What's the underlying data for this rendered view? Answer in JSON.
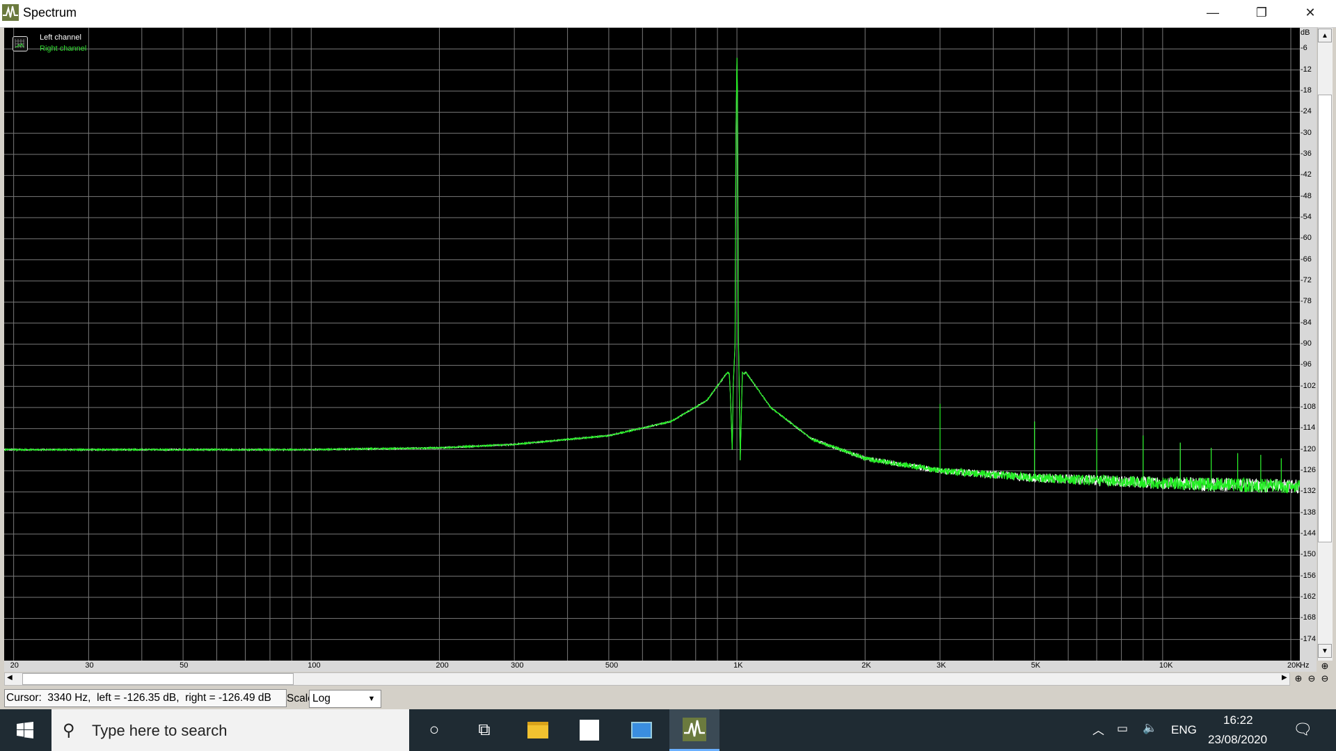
{
  "window": {
    "title": "Spectrum",
    "controls": {
      "minimize": "—",
      "restore": "❐",
      "close": "✕"
    }
  },
  "legend": {
    "left": "Left channel",
    "right": "Right channel"
  },
  "y_axis": {
    "unit": "dB",
    "ticks": [
      "-6",
      "-12",
      "-18",
      "-24",
      "-30",
      "-36",
      "-42",
      "-48",
      "-54",
      "-60",
      "-66",
      "-72",
      "-78",
      "-84",
      "-90",
      "-96",
      "-102",
      "-108",
      "-114",
      "-120",
      "-126",
      "-132",
      "-138",
      "-144",
      "-150",
      "-156",
      "-162",
      "-168",
      "-174"
    ]
  },
  "x_axis": {
    "unit": "Hz",
    "ticks": [
      {
        "f": 20,
        "label": "20"
      },
      {
        "f": 30,
        "label": "30"
      },
      {
        "f": 50,
        "label": "50"
      },
      {
        "f": 100,
        "label": "100"
      },
      {
        "f": 200,
        "label": "200"
      },
      {
        "f": 300,
        "label": "300"
      },
      {
        "f": 500,
        "label": "500"
      },
      {
        "f": 1000,
        "label": "1K"
      },
      {
        "f": 2000,
        "label": "2K"
      },
      {
        "f": 3000,
        "label": "3K"
      },
      {
        "f": 5000,
        "label": "5K"
      },
      {
        "f": 10000,
        "label": "10K"
      },
      {
        "f": 20000,
        "label": "20K"
      }
    ]
  },
  "status": {
    "cursor": "Cursor:  3340 Hz,  left = -126.35 dB,  right = -126.49 dB",
    "scale_label": "Scale",
    "scale_value": "Log"
  },
  "taskbar": {
    "search_placeholder": "Type here to search",
    "lang": "ENG",
    "time": "16:22",
    "date": "23/08/2020"
  },
  "chart_data": {
    "type": "line",
    "xscale": "log",
    "xlim": [
      19,
      21000
    ],
    "ylim": [
      -180,
      0
    ],
    "grid": true,
    "legend": "top-left",
    "colors": {
      "left": "#ffffff",
      "right": "#22ee22",
      "grid": "#7a7a7a",
      "background": "#000000"
    },
    "floor": [
      [
        19,
        -120
      ],
      [
        100,
        -120
      ],
      [
        200,
        -119.5
      ],
      [
        300,
        -118.5
      ],
      [
        500,
        -116
      ],
      [
        700,
        -112
      ],
      [
        850,
        -106
      ],
      [
        950,
        -98
      ],
      [
        1000,
        -100
      ],
      [
        1050,
        -98
      ],
      [
        1200,
        -108
      ],
      [
        1500,
        -117
      ],
      [
        2000,
        -122.5
      ],
      [
        3000,
        -126
      ],
      [
        5000,
        -128
      ],
      [
        10000,
        -129.5
      ],
      [
        21000,
        -130.5
      ]
    ],
    "fundamental": {
      "f": 1000,
      "db": -8.5
    },
    "harmonics": [
      {
        "f": 3000,
        "db": -107
      },
      {
        "f": 5000,
        "db": -112
      },
      {
        "f": 7000,
        "db": -114
      },
      {
        "f": 9000,
        "db": -116
      },
      {
        "f": 11000,
        "db": -118
      },
      {
        "f": 13000,
        "db": -119.5
      },
      {
        "f": 15000,
        "db": -121
      },
      {
        "f": 17000,
        "db": -121.5
      },
      {
        "f": 19000,
        "db": -122.5
      }
    ]
  }
}
